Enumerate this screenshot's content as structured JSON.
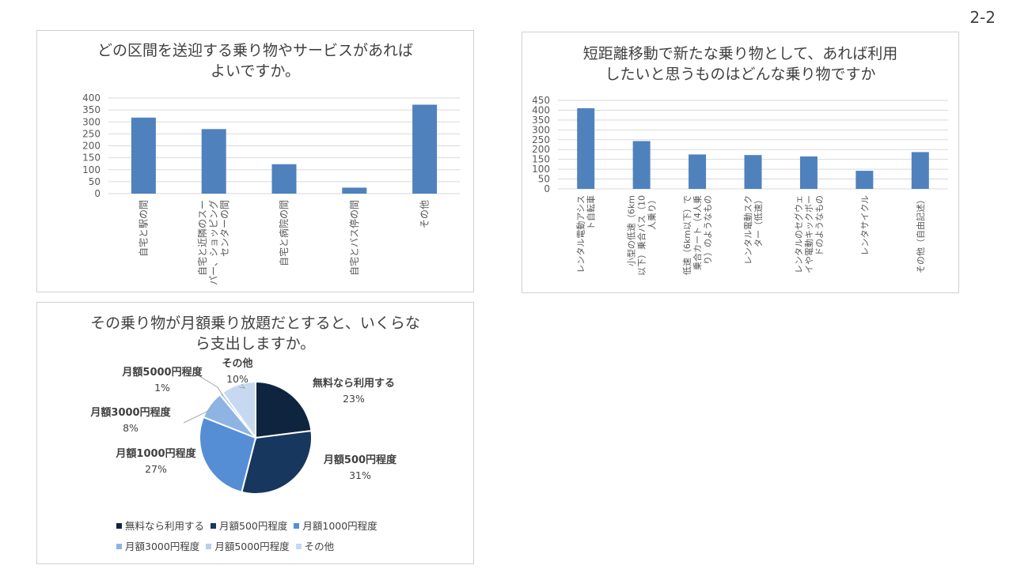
{
  "page_number": "2-2",
  "colors": {
    "bar": "#4f81bd",
    "grid": "#d9d9d9",
    "axis_text": "#595959",
    "pie": [
      "#0f243e",
      "#17375e",
      "#558ed5",
      "#8eb4e3",
      "#b9cde5",
      "#c6d9f1"
    ]
  },
  "chart_data": [
    {
      "type": "bar",
      "title_lines": [
        "どの区間を送迎する乗り物やサービスがあれば",
        "よいですか。"
      ],
      "categories": [
        [
          "自宅と駅の間"
        ],
        [
          "自宅と近隣のスー",
          "パー、ショッピング",
          "センターの間"
        ],
        [
          "自宅と病院の間"
        ],
        [
          "自宅とバス停の間"
        ],
        [
          "その他"
        ]
      ],
      "values": [
        318,
        270,
        123,
        25,
        372
      ],
      "ylim": [
        0,
        400
      ],
      "yticks": [
        "0",
        "50",
        "100",
        "150",
        "200",
        "250",
        "300",
        "350",
        "400"
      ],
      "grid": true,
      "legend": "none"
    },
    {
      "type": "bar",
      "title_lines": [
        "短距離移動で新たな乗り物として、あれば利用",
        "したいと思うものはどんな乗り物ですか"
      ],
      "categories": [
        [
          "レンタル電動アシス",
          "ト自転車"
        ],
        [
          "小型の低速（6km",
          "以下）乗合バス（10",
          "人乗り）"
        ],
        [
          "低速（6km以下）で",
          "乗合カート（4人乗",
          "り）のようなもの"
        ],
        [
          "レンタル電動スク",
          "ター（低速）"
        ],
        [
          "レンタルのセグウェ",
          "イや電動キックボー",
          "ドのようなもの"
        ],
        [
          "レンタサイクル"
        ],
        [
          "その他（自由記述）"
        ]
      ],
      "values": [
        410,
        243,
        175,
        172,
        165,
        92,
        187
      ],
      "ylim": [
        0,
        450
      ],
      "yticks": [
        "0",
        "50",
        "100",
        "150",
        "200",
        "250",
        "300",
        "350",
        "400",
        "450"
      ],
      "grid": true,
      "legend": "none"
    },
    {
      "type": "pie",
      "title_lines": [
        "その乗り物が月額乗り放題だとすると、いくらな",
        "ら支出しますか。"
      ],
      "categories": [
        "無料なら利用する",
        "月額500円程度",
        "月額1000円程度",
        "月額3000円程度",
        "月額5000円程度",
        "その他"
      ],
      "values": [
        23,
        31,
        27,
        8,
        1,
        10
      ],
      "value_labels": [
        "23%",
        "31%",
        "27%",
        "8%",
        "1%",
        "10%"
      ],
      "legend": "bottom"
    }
  ]
}
